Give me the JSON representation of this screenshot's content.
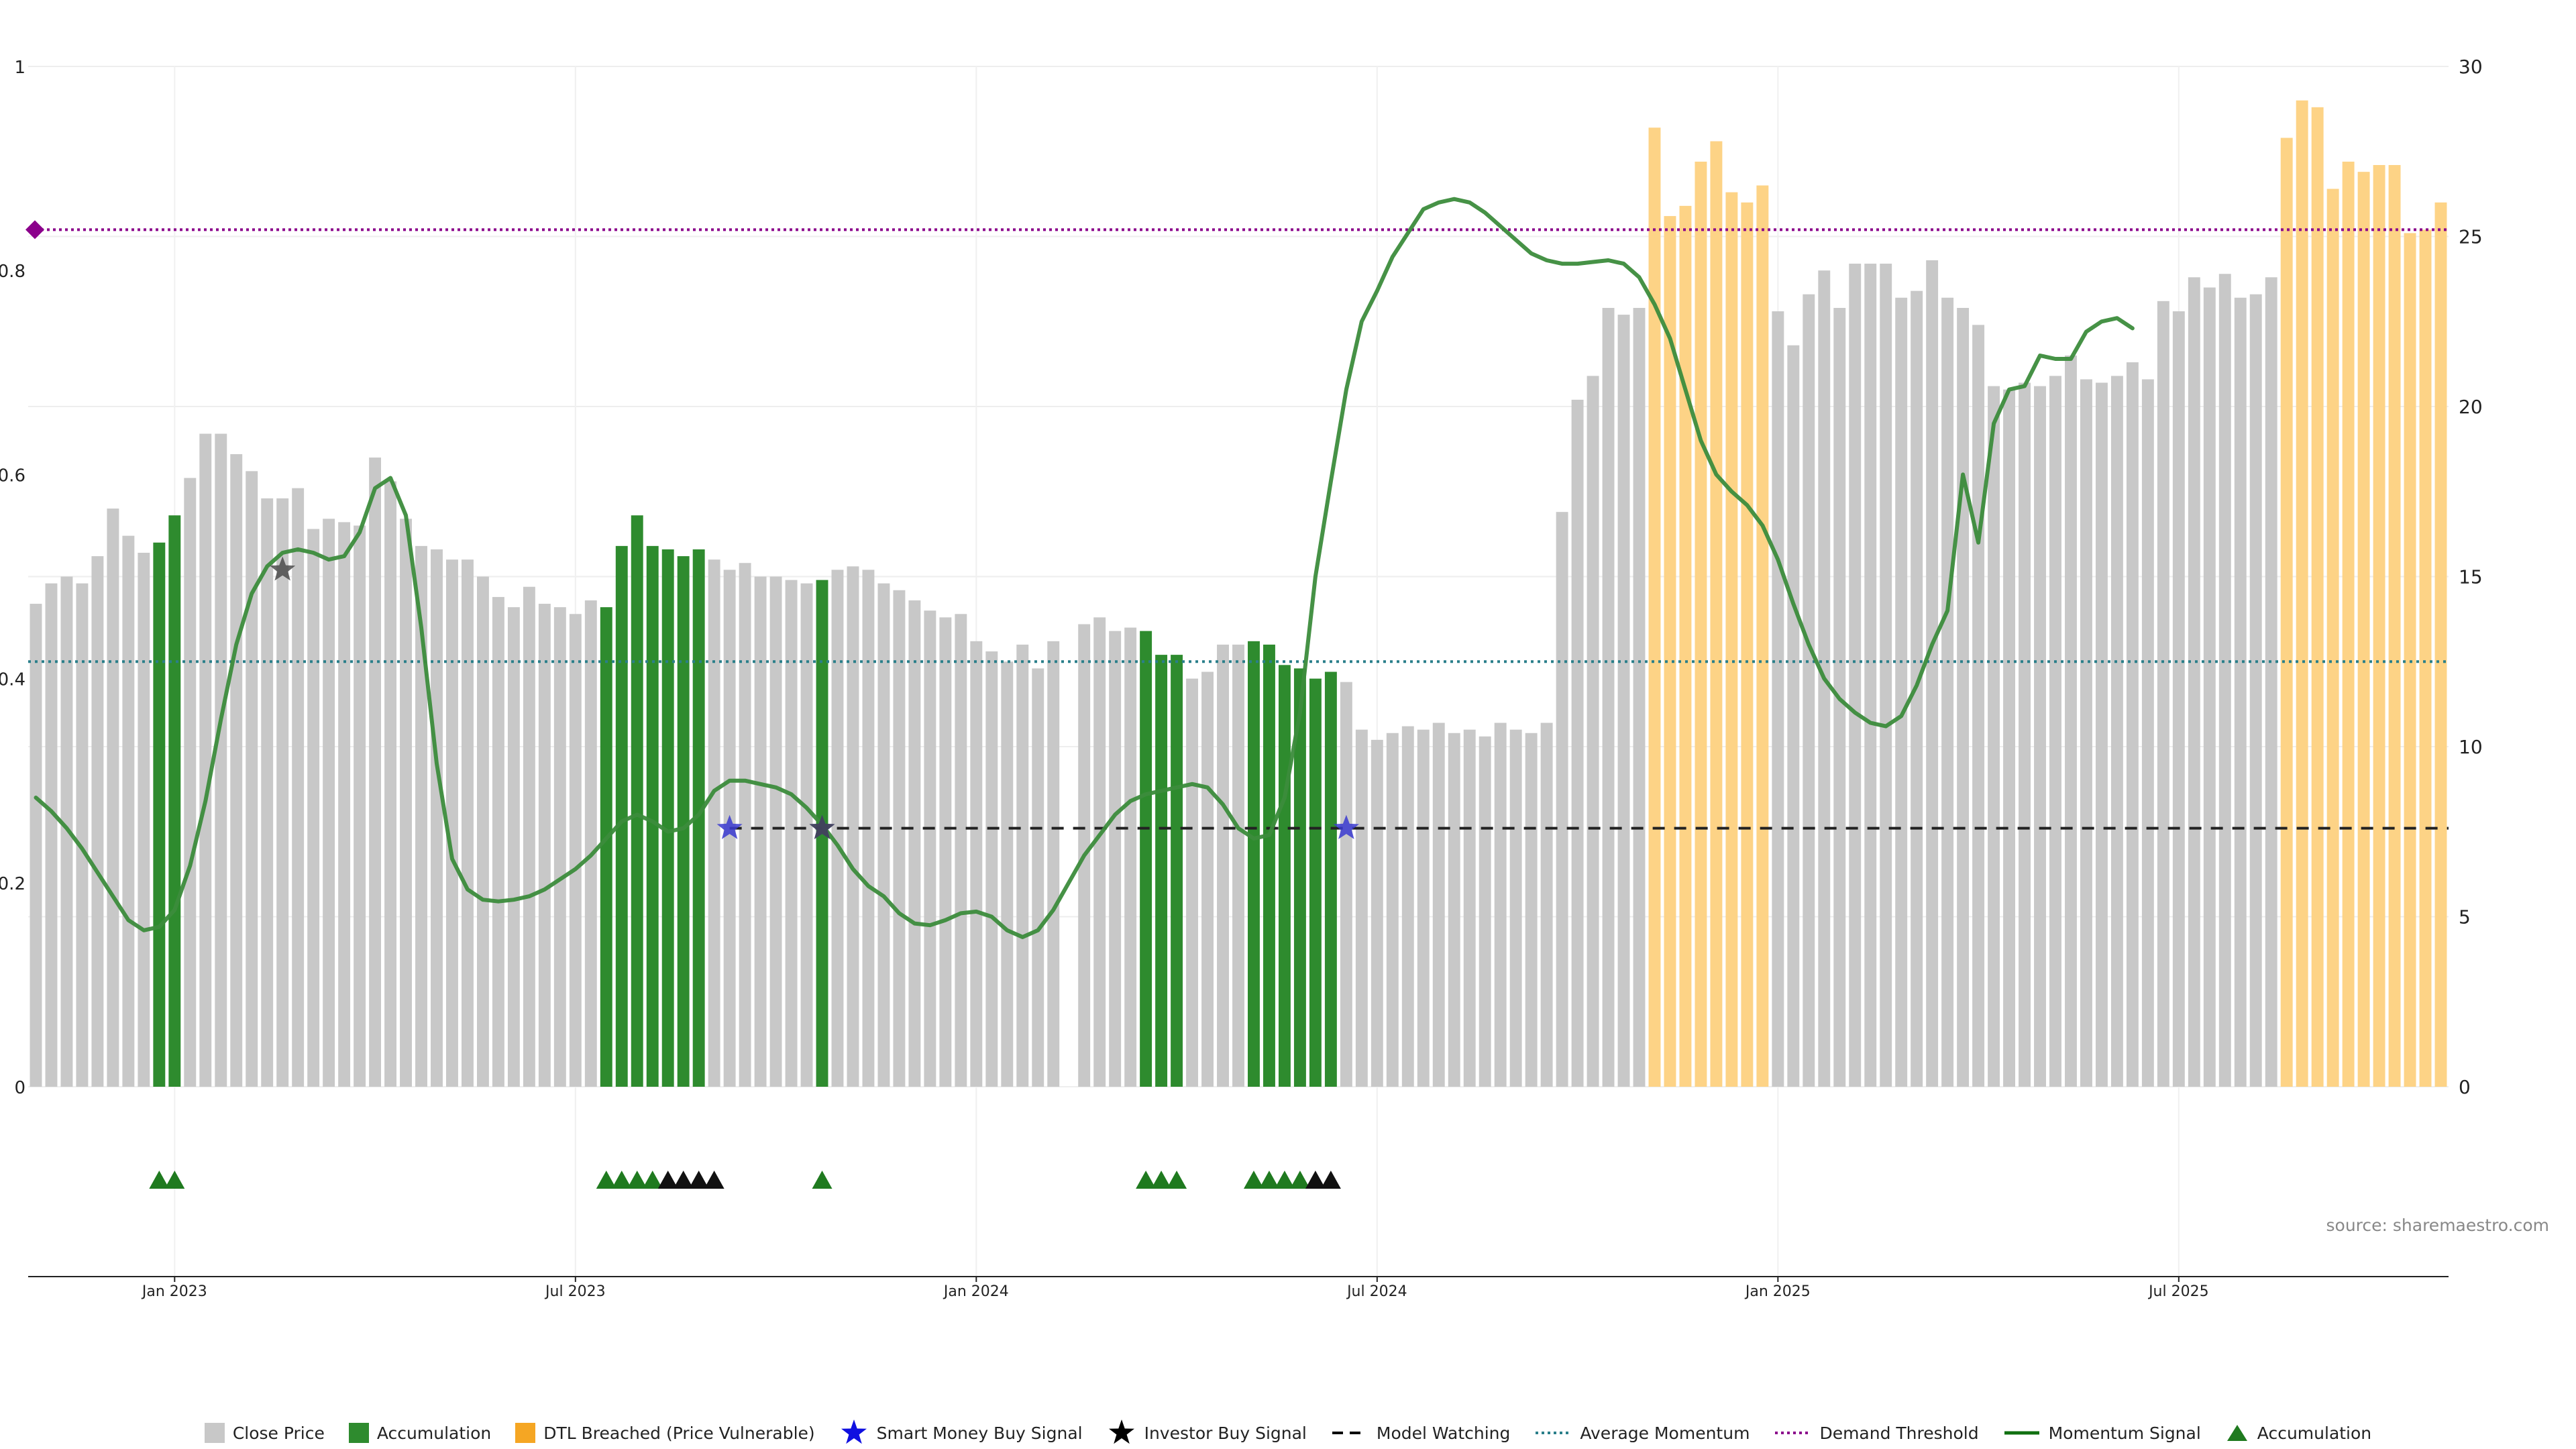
{
  "chart_data": {
    "type": "bar",
    "source": "source: sharemaestro.com",
    "left_axis": {
      "ticks": [
        "0",
        "0.2",
        "0.4",
        "0.6",
        "0.8",
        "1"
      ],
      "ylim": [
        0,
        1
      ]
    },
    "right_axis": {
      "ticks": [
        "0",
        "5",
        "10",
        "15",
        "20",
        "25",
        "30"
      ],
      "ylim": [
        0,
        30
      ]
    },
    "x_ticks": [
      "Jan 2023",
      "Jul 2023",
      "Jan 2024",
      "Jul 2024",
      "Jan 2025",
      "Jul 2025"
    ],
    "x_tick_weeks": [
      9,
      35,
      61,
      87,
      113,
      139
    ],
    "legend": {
      "close_price": "Close Price",
      "accumulation_bar": "Accumulation",
      "dtl": "DTL Breached (Price Vulnerable)",
      "smart_money": "Smart Money Buy Signal",
      "investor": "Investor Buy Signal",
      "model_watching": "Model Watching",
      "average_momentum": "Average Momentum",
      "demand_threshold": "Demand Threshold",
      "momentum_signal": "Momentum Signal",
      "accumulation_marker": "Accumulation"
    },
    "colors": {
      "close": "#c8c8c8",
      "accumulation": "#2e8b2e",
      "dtl": "#fdd386",
      "momentum": "#3c8c3c",
      "average_momentum": "#2a7f8a",
      "demand_threshold": "#8b008b",
      "smart_money": "#3a3ad0",
      "investor": "#444444",
      "marker_green": "#1f7a1f",
      "marker_black": "#111111"
    },
    "close_values": [
      14.2,
      14.8,
      15.0,
      14.8,
      15.6,
      17.0,
      16.2,
      15.7,
      16.0,
      16.8,
      17.9,
      19.2,
      19.2,
      18.6,
      18.1,
      17.3,
      17.3,
      17.6,
      16.4,
      16.7,
      16.6,
      16.5,
      18.5,
      17.8,
      16.7,
      15.9,
      15.8,
      15.5,
      15.5,
      15.0,
      14.4,
      14.1,
      14.7,
      14.2,
      14.1,
      13.9,
      14.3,
      14.1,
      15.9,
      16.8,
      15.9,
      15.8,
      15.6,
      15.8,
      15.5,
      15.2,
      15.4,
      15.0,
      15.0,
      14.9,
      14.8,
      14.9,
      15.2,
      15.3,
      15.2,
      14.8,
      14.6,
      14.3,
      14.0,
      13.8,
      13.9,
      13.1,
      12.8,
      12.5,
      13.0,
      12.3,
      13.1,
      0,
      13.6,
      13.8,
      13.4,
      13.5,
      13.4,
      12.7,
      12.7,
      12.0,
      12.2,
      13.0,
      13.0,
      13.1,
      13.0,
      12.4,
      12.3,
      12.0,
      12.2,
      11.9,
      10.5,
      10.2,
      10.4,
      10.6,
      10.5,
      10.7,
      10.4,
      10.5,
      10.3,
      10.7,
      10.5,
      10.4,
      10.7,
      16.9,
      20.2,
      20.9,
      22.9,
      22.7,
      22.9,
      28.2,
      25.6,
      25.9,
      27.2,
      27.8,
      26.3,
      26.0,
      26.5,
      22.8,
      21.8,
      23.3,
      24.0,
      22.9,
      24.2,
      24.2,
      24.2,
      23.2,
      23.4,
      24.3,
      23.2,
      22.9,
      22.4,
      20.6,
      20.5,
      20.7,
      20.6,
      20.9,
      21.5,
      20.8,
      20.7,
      20.9,
      21.3,
      20.8,
      23.1,
      22.8,
      23.8,
      23.5,
      23.9,
      23.2,
      23.3,
      23.8,
      27.9,
      29.0,
      28.8,
      26.4,
      27.2,
      26.9,
      27.1,
      27.1,
      25.1,
      25.2,
      26.0
    ],
    "accumulation_bar_weeks": [
      8,
      9,
      37,
      38,
      39,
      40,
      41,
      42,
      43,
      51,
      72,
      73,
      74,
      79,
      80,
      81,
      82,
      83,
      84
    ],
    "dtl_weeks": [
      105,
      106,
      107,
      108,
      109,
      110,
      111,
      112,
      146,
      147,
      148,
      149,
      150,
      151,
      152,
      153,
      154,
      155,
      156
    ],
    "momentum_values": [
      8.5,
      8.1,
      7.6,
      7.0,
      6.3,
      5.6,
      4.9,
      4.6,
      4.7,
      5.2,
      6.5,
      8.4,
      10.8,
      13.0,
      14.5,
      15.3,
      15.7,
      15.8,
      15.7,
      15.5,
      15.6,
      16.3,
      17.6,
      17.9,
      16.8,
      13.5,
      9.5,
      6.7,
      5.8,
      5.5,
      5.45,
      5.5,
      5.6,
      5.8,
      6.1,
      6.4,
      6.8,
      7.3,
      7.8,
      8.0,
      7.8,
      7.5,
      7.6,
      8.0,
      8.7,
      9.0,
      9.0,
      8.9,
      8.8,
      8.6,
      8.2,
      7.7,
      7.1,
      6.4,
      5.9,
      5.6,
      5.1,
      4.8,
      4.75,
      4.9,
      5.1,
      5.15,
      5.0,
      4.6,
      4.4,
      4.6,
      5.2,
      6.0,
      6.8,
      7.4,
      8.0,
      8.4,
      8.6,
      8.7,
      8.8,
      8.9,
      8.8,
      8.3,
      7.6,
      7.3,
      7.4,
      8.5,
      11.0,
      15.0,
      17.8,
      20.5,
      22.5,
      23.4,
      24.4,
      25.1,
      25.8,
      26.0,
      26.1,
      26.0,
      25.7,
      25.3,
      24.9,
      24.5,
      24.3,
      24.2,
      24.2,
      24.25,
      24.3,
      24.2,
      23.8,
      23.0,
      22.0,
      20.5,
      19.0,
      18.0,
      17.5,
      17.1,
      16.5,
      15.5,
      14.2,
      13.0,
      12.0,
      11.4,
      11.0,
      10.7,
      10.6,
      10.9,
      11.8,
      13.0,
      14.0,
      18.0,
      16.0,
      19.5,
      20.5,
      20.6,
      21.5,
      21.4,
      21.4,
      22.2,
      22.5,
      22.6,
      22.3
    ],
    "momentum_start_week": 0,
    "average_momentum": 12.5,
    "demand_threshold": 25.2,
    "model_watching_level": 7.6,
    "model_watching_start_week": 45,
    "smart_money_weeks": [
      45,
      51,
      85
    ],
    "investor_weeks": [
      16,
      51
    ],
    "markers": [
      {
        "week": 8,
        "color": "green"
      },
      {
        "week": 9,
        "color": "green"
      },
      {
        "week": 37,
        "color": "green"
      },
      {
        "week": 38,
        "color": "green"
      },
      {
        "week": 39,
        "color": "green"
      },
      {
        "week": 40,
        "color": "green"
      },
      {
        "week": 41,
        "color": "black"
      },
      {
        "week": 42,
        "color": "black"
      },
      {
        "week": 43,
        "color": "black"
      },
      {
        "week": 44,
        "color": "black"
      },
      {
        "week": 51,
        "color": "green"
      },
      {
        "week": 72,
        "color": "green"
      },
      {
        "week": 73,
        "color": "green"
      },
      {
        "week": 74,
        "color": "green"
      },
      {
        "week": 79,
        "color": "green"
      },
      {
        "week": 80,
        "color": "green"
      },
      {
        "week": 81,
        "color": "green"
      },
      {
        "week": 82,
        "color": "green"
      },
      {
        "week": 83,
        "color": "black"
      },
      {
        "week": 84,
        "color": "black"
      }
    ]
  }
}
